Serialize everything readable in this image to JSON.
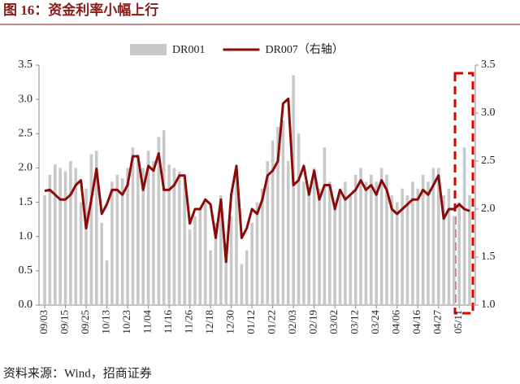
{
  "chart_data": {
    "type": "bar-line",
    "title": "图 16：资金利率小幅上行",
    "source": "资料来源：Wind，招商证券",
    "categories": [
      "09/03",
      null,
      null,
      null,
      "09/15",
      null,
      null,
      null,
      "09/25",
      null,
      null,
      null,
      "10/13",
      null,
      null,
      null,
      "10/23",
      null,
      null,
      null,
      "11/04",
      null,
      null,
      null,
      "11/16",
      null,
      null,
      null,
      "11/26",
      null,
      null,
      null,
      "12/18",
      null,
      null,
      null,
      "12/30",
      null,
      null,
      null,
      "01/12",
      null,
      null,
      null,
      "01/22",
      null,
      null,
      null,
      "02/03",
      null,
      null,
      null,
      "02/19",
      null,
      null,
      null,
      "03/02",
      null,
      null,
      null,
      "03/12",
      null,
      null,
      null,
      "03/24",
      null,
      null,
      null,
      "04/06",
      null,
      null,
      null,
      "04/16",
      null,
      null,
      null,
      "04/27",
      null,
      null,
      null,
      "05/11",
      null,
      null
    ],
    "series": [
      {
        "name": "DR001",
        "type": "bar",
        "color": "#c8c8c8",
        "axis": "y",
        "values": [
          1.6,
          1.9,
          2.05,
          2.0,
          1.95,
          2.1,
          2.0,
          1.5,
          1.7,
          2.2,
          2.25,
          1.2,
          0.65,
          1.8,
          1.9,
          1.85,
          2.0,
          2.3,
          2.2,
          2.0,
          2.25,
          2.1,
          2.45,
          2.55,
          2.05,
          2.0,
          1.95,
          1.8,
          1.1,
          1.3,
          1.4,
          1.5,
          0.8,
          1.2,
          1.6,
          0.9,
          1.3,
          1.9,
          0.6,
          0.8,
          1.2,
          1.5,
          1.7,
          2.1,
          2.4,
          2.6,
          2.7,
          2.1,
          3.35,
          2.5,
          1.8,
          1.65,
          2.0,
          1.7,
          2.3,
          1.8,
          1.5,
          1.7,
          1.8,
          1.6,
          1.9,
          2.0,
          1.8,
          1.9,
          1.8,
          2.0,
          1.9,
          1.6,
          1.5,
          1.7,
          1.6,
          1.8,
          1.7,
          1.9,
          1.8,
          2.0,
          2.0,
          1.6,
          1.7,
          1.3,
          1.5,
          2.3,
          1.6
        ]
      },
      {
        "name": "DR007（右轴）",
        "type": "line",
        "color": "#8b0a0a",
        "axis": "y2",
        "values": [
          2.19,
          2.2,
          2.15,
          2.1,
          2.1,
          2.15,
          2.25,
          2.3,
          1.8,
          2.1,
          2.42,
          1.95,
          2.05,
          2.2,
          2.2,
          2.15,
          2.25,
          2.55,
          2.55,
          2.2,
          2.45,
          2.4,
          2.58,
          2.2,
          2.2,
          2.25,
          2.35,
          2.35,
          1.85,
          2.0,
          2.0,
          2.1,
          2.05,
          1.7,
          2.1,
          1.45,
          2.15,
          2.45,
          1.7,
          1.8,
          2.0,
          1.95,
          2.1,
          2.35,
          2.4,
          2.5,
          3.1,
          3.15,
          2.25,
          2.3,
          2.45,
          2.15,
          2.4,
          2.1,
          2.25,
          2.25,
          2.0,
          2.2,
          2.1,
          2.15,
          2.2,
          2.3,
          2.2,
          2.25,
          2.15,
          2.3,
          2.2,
          2.0,
          1.95,
          2.0,
          2.05,
          2.1,
          2.1,
          2.2,
          2.15,
          2.25,
          2.35,
          1.9,
          2.0,
          2.0,
          2.05,
          2.0,
          1.98
        ]
      }
    ],
    "ylim": [
      0,
      3.5
    ],
    "yticks": [
      {
        "value": 0,
        "label": "0.0"
      },
      0.5,
      {
        "value": 1,
        "label": "1.0"
      },
      1.5,
      {
        "value": 2,
        "label": "2.0"
      },
      2.5,
      {
        "value": 3,
        "label": "3.0"
      },
      3.5
    ],
    "y2lim": [
      1,
      3.5
    ],
    "y2ticks": [
      {
        "value": 1,
        "label": "1.0"
      },
      1.5,
      {
        "value": 2,
        "label": "2.0"
      },
      2.5,
      {
        "value": 3,
        "label": "3.0"
      },
      3.5
    ],
    "legend": "top"
  }
}
